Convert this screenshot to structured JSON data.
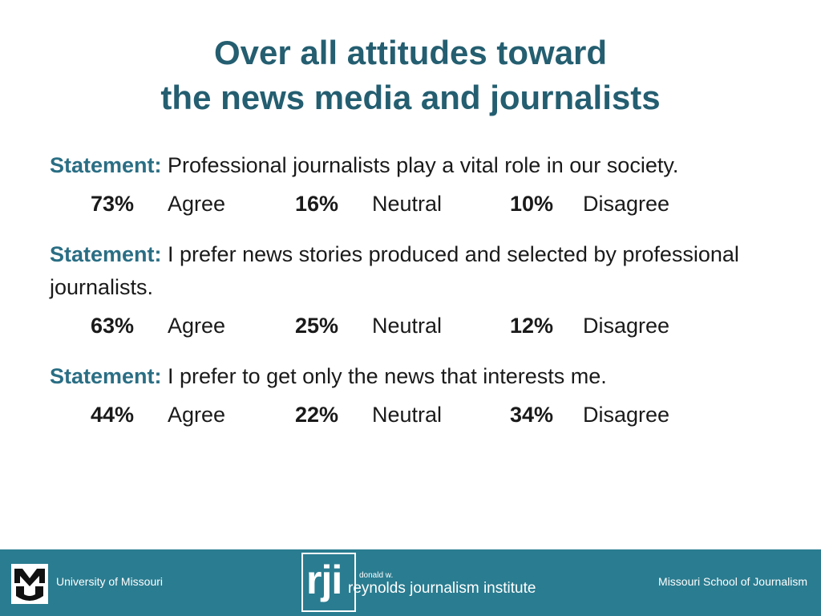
{
  "title": {
    "line1": "Over all attitudes toward",
    "line2": "the news media and journalists"
  },
  "statements": [
    {
      "label": "Statement:",
      "text": " Professional journalists play a vital role in our society.",
      "agree_pct": "73%",
      "agree_label": "Agree",
      "neutral_pct": "16%",
      "neutral_label": "Neutral",
      "disagree_pct": "10%",
      "disagree_label": "Disagree"
    },
    {
      "label": "Statement:",
      "text": " I prefer news stories produced and selected by professional journalists.",
      "agree_pct": "63%",
      "agree_label": "Agree",
      "neutral_pct": "25%",
      "neutral_label": "Neutral",
      "disagree_pct": "12%",
      "disagree_label": "Disagree"
    },
    {
      "label": "Statement:",
      "text": " I prefer to get only the news that interests me.",
      "agree_pct": "44%",
      "agree_label": "Agree",
      "neutral_pct": "22%",
      "neutral_label": "Neutral",
      "disagree_pct": "34%",
      "disagree_label": "Disagree"
    }
  ],
  "footer": {
    "left_text": "University of Missouri",
    "right_text": "Missouri School of Journalism",
    "rji_mark": "rji",
    "rji_small": "donald w.",
    "rji_name": "reynolds journalism institute",
    "background_color": "#2a7c90"
  }
}
